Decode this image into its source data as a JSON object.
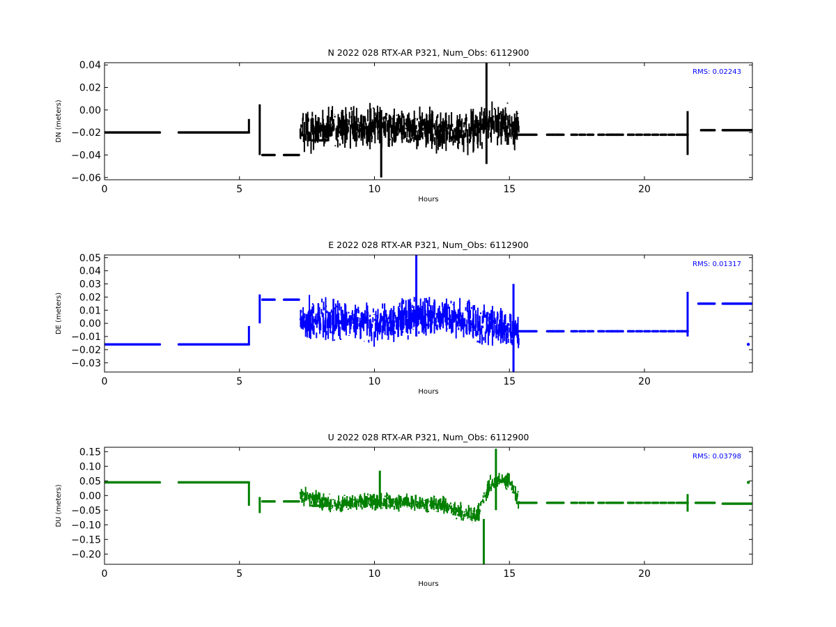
{
  "chart_data": [
    {
      "type": "line",
      "title": "N 2022 028 RTX-AR  P321, Num_Obs: 6112900",
      "xlabel": "Hours",
      "ylabel": "DN (meters)",
      "xlim": [
        0,
        24
      ],
      "ylim": [
        -0.062,
        0.042
      ],
      "xticks": [
        0,
        5,
        10,
        15,
        20
      ],
      "yticks": [
        -0.06,
        -0.04,
        -0.02,
        0.0,
        0.02,
        0.04
      ],
      "ytick_labels": [
        "−0.06",
        "−0.04",
        "−0.02",
        "0.00",
        "0.02",
        "0.04"
      ],
      "rms_label": "RMS:  0.02243",
      "color": "#000000",
      "rms_color": "#0000ff",
      "flat_segments": [
        {
          "x": [
            0,
            2.05
          ],
          "y": -0.02
        },
        {
          "x": [
            2.75,
            5.35
          ],
          "y": -0.02
        },
        {
          "x": [
            5.85,
            6.3
          ],
          "y": -0.04
        },
        {
          "x": [
            6.65,
            7.2
          ],
          "y": -0.04
        },
        {
          "x": [
            7.7,
            8.25
          ],
          "y": -0.027
        },
        {
          "x": [
            15.3,
            16.0
          ],
          "y": -0.022
        },
        {
          "x": [
            22.1,
            22.6
          ],
          "y": -0.018
        },
        {
          "x": [
            22.9,
            24.0
          ],
          "y": -0.018
        }
      ],
      "sparse_dots": {
        "x": [
          16.5,
          16.7,
          16.9,
          17.4,
          17.7,
          18.0,
          18.4,
          18.7,
          18.9,
          19.1,
          19.5,
          19.8,
          20.1,
          20.4,
          20.7,
          21.0,
          21.3,
          21.5
        ],
        "y": -0.022
      },
      "spikes": [
        {
          "x": 5.35,
          "y": [
            -0.02,
            -0.008
          ]
        },
        {
          "x": 5.75,
          "y": [
            -0.04,
            0.005
          ]
        },
        {
          "x": 21.6,
          "y": [
            -0.04,
            -0.001
          ]
        },
        {
          "x": 14.15,
          "y": [
            -0.048,
            0.042
          ]
        },
        {
          "x": 10.25,
          "y": [
            -0.06,
            0.0
          ]
        }
      ],
      "noise": {
        "x": [
          7.25,
          15.35
        ],
        "anchors": [
          [
            7.25,
            -0.02
          ],
          [
            8.5,
            -0.015
          ],
          [
            10.0,
            -0.015
          ],
          [
            11.5,
            -0.015
          ],
          [
            12.5,
            -0.02
          ],
          [
            13.5,
            -0.02
          ],
          [
            14.5,
            -0.01
          ],
          [
            15.35,
            -0.02
          ]
        ],
        "half_width": 0.022,
        "seed": 11
      }
    },
    {
      "type": "line",
      "title": "E 2022 028 RTX-AR  P321, Num_Obs: 6112900",
      "xlabel": "Hours",
      "ylabel": "DE (meters)",
      "xlim": [
        0,
        24
      ],
      "ylim": [
        -0.037,
        0.052
      ],
      "xticks": [
        0,
        5,
        10,
        15,
        20
      ],
      "yticks": [
        -0.03,
        -0.02,
        -0.01,
        0.0,
        0.01,
        0.02,
        0.03,
        0.04,
        0.05
      ],
      "ytick_labels": [
        "−0.03",
        "−0.02",
        "−0.01",
        "0.00",
        "0.01",
        "0.02",
        "0.03",
        "0.04",
        "0.05"
      ],
      "rms_label": "RMS:  0.01317",
      "color": "#0000ff",
      "rms_color": "#0000ff",
      "flat_segments": [
        {
          "x": [
            0,
            2.05
          ],
          "y": -0.016
        },
        {
          "x": [
            2.75,
            5.35
          ],
          "y": -0.016
        },
        {
          "x": [
            5.85,
            6.3
          ],
          "y": 0.018
        },
        {
          "x": [
            6.65,
            7.2
          ],
          "y": 0.018
        },
        {
          "x": [
            15.3,
            16.0
          ],
          "y": -0.006
        },
        {
          "x": [
            22.0,
            22.6
          ],
          "y": 0.015
        },
        {
          "x": [
            22.9,
            24.0
          ],
          "y": 0.015
        }
      ],
      "sparse_dots": {
        "x": [
          16.5,
          16.7,
          16.9,
          17.4,
          17.7,
          18.0,
          18.4,
          18.7,
          18.9,
          19.1,
          19.5,
          19.8,
          20.1,
          20.4,
          20.7,
          21.0,
          21.3,
          21.5
        ],
        "y": -0.006
      },
      "spikes": [
        {
          "x": 5.35,
          "y": [
            -0.016,
            -0.002
          ]
        },
        {
          "x": 5.75,
          "y": [
            0.0,
            0.022
          ]
        },
        {
          "x": 21.6,
          "y": [
            -0.01,
            0.024
          ]
        },
        {
          "x": 11.55,
          "y": [
            -0.01,
            0.052
          ]
        },
        {
          "x": 15.15,
          "y": [
            -0.037,
            0.03
          ]
        }
      ],
      "noise": {
        "x": [
          7.25,
          15.35
        ],
        "anchors": [
          [
            7.25,
            0.005
          ],
          [
            8.5,
            0.002
          ],
          [
            10.0,
            0.0
          ],
          [
            11.5,
            0.005
          ],
          [
            12.5,
            0.005
          ],
          [
            13.5,
            0.002
          ],
          [
            14.5,
            -0.002
          ],
          [
            15.35,
            -0.006
          ]
        ],
        "half_width": 0.018,
        "seed": 23
      },
      "end_dot": {
        "x": 23.85,
        "y": -0.016
      }
    },
    {
      "type": "line",
      "title": "U 2022 028 RTX-AR  P321, Num_Obs: 6112900",
      "xlabel": "Hours",
      "ylabel": "DU (meters)",
      "xlim": [
        0,
        24
      ],
      "ylim": [
        -0.235,
        0.165
      ],
      "xticks": [
        0,
        5,
        10,
        15,
        20
      ],
      "yticks": [
        -0.2,
        -0.15,
        -0.1,
        -0.05,
        0.0,
        0.05,
        0.1,
        0.15
      ],
      "ytick_labels": [
        "−0.20",
        "−0.15",
        "−0.10",
        "−0.05",
        "0.00",
        "0.05",
        "0.10",
        "0.15"
      ],
      "rms_label": "RMS:  0.03798",
      "color": "#008000",
      "rms_color": "#0000ff",
      "flat_segments": [
        {
          "x": [
            0,
            2.05
          ],
          "y": 0.045
        },
        {
          "x": [
            2.75,
            5.35
          ],
          "y": 0.045
        },
        {
          "x": [
            5.85,
            6.3
          ],
          "y": -0.02
        },
        {
          "x": [
            6.65,
            7.2
          ],
          "y": -0.02
        },
        {
          "x": [
            7.7,
            8.25
          ],
          "y": -0.035
        },
        {
          "x": [
            15.3,
            16.0
          ],
          "y": -0.025
        },
        {
          "x": [
            21.9,
            22.6
          ],
          "y": -0.025
        },
        {
          "x": [
            22.9,
            24.0
          ],
          "y": -0.028
        }
      ],
      "sparse_dots": {
        "x": [
          16.5,
          16.7,
          16.9,
          17.4,
          17.7,
          18.0,
          18.4,
          18.7,
          18.9,
          19.1,
          19.5,
          19.8,
          20.1,
          20.4,
          20.7,
          21.0,
          21.3,
          21.5
        ],
        "y": -0.025
      },
      "spikes": [
        {
          "x": 5.35,
          "y": [
            -0.035,
            0.045
          ]
        },
        {
          "x": 5.75,
          "y": [
            -0.06,
            -0.005
          ]
        },
        {
          "x": 21.6,
          "y": [
            -0.055,
            0.005
          ]
        },
        {
          "x": 14.05,
          "y": [
            -0.235,
            -0.08
          ]
        },
        {
          "x": 14.5,
          "y": [
            -0.05,
            0.16
          ]
        },
        {
          "x": 10.2,
          "y": [
            -0.04,
            0.085
          ]
        }
      ],
      "noise": {
        "x": [
          7.25,
          15.35
        ],
        "anchors": [
          [
            7.25,
            0.0
          ],
          [
            8.5,
            -0.03
          ],
          [
            10.0,
            -0.02
          ],
          [
            11.5,
            -0.025
          ],
          [
            12.5,
            -0.03
          ],
          [
            13.3,
            -0.06
          ],
          [
            13.8,
            -0.07
          ],
          [
            14.3,
            0.04
          ],
          [
            15.0,
            0.05
          ],
          [
            15.35,
            -0.02
          ]
        ],
        "half_width": 0.035,
        "seed": 37
      },
      "end_dot": {
        "x": 23.85,
        "y": 0.045
      }
    }
  ]
}
